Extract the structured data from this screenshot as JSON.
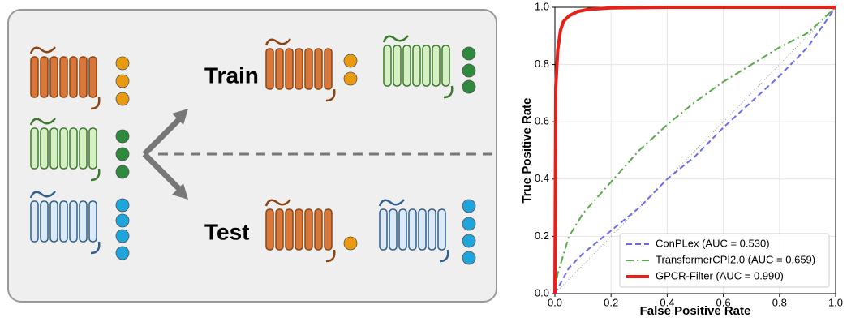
{
  "diagram": {
    "labels": [
      "Train",
      "Test"
    ]
  },
  "chart_data": {
    "type": "line",
    "xlabel": "False Positive Rate",
    "ylabel": "True Positive Rate",
    "xlim": [
      0,
      1
    ],
    "ylim": [
      0,
      1
    ],
    "xticks": [
      {
        "value": 0,
        "label": "0.0"
      },
      0.2,
      0.4,
      0.6,
      0.8,
      {
        "value": 1,
        "label": "1.0"
      }
    ],
    "yticks": [
      {
        "value": 0,
        "label": "0.0"
      },
      0.2,
      0.4,
      0.6,
      0.8,
      {
        "value": 1,
        "label": "1.0"
      }
    ],
    "grid": true,
    "legend": "lower right",
    "series": [
      {
        "name": "ConPLex (AUC = 0.530)",
        "color": "#6b6bf0",
        "style": "dashed",
        "x": [
          0,
          0.05,
          0.1,
          0.2,
          0.3,
          0.4,
          0.5,
          0.6,
          0.7,
          0.8,
          0.9,
          1
        ],
        "values": [
          0,
          0.09,
          0.14,
          0.22,
          0.3,
          0.4,
          0.48,
          0.58,
          0.67,
          0.76,
          0.86,
          1
        ]
      },
      {
        "name": "TransformerCPI2.0 (AUC = 0.659)",
        "color": "#5aaa4a",
        "style": "dashdot",
        "x": [
          0,
          0.01,
          0.05,
          0.1,
          0.2,
          0.3,
          0.4,
          0.5,
          0.6,
          0.7,
          0.8,
          0.9,
          1
        ],
        "values": [
          0,
          0.07,
          0.2,
          0.28,
          0.39,
          0.5,
          0.59,
          0.67,
          0.74,
          0.8,
          0.86,
          0.91,
          1
        ]
      },
      {
        "name": "GPCR-Filter (AUC = 0.990)",
        "color": "#e8201a",
        "style": "solid",
        "x": [
          0,
          0.003,
          0.01,
          0.02,
          0.03,
          0.05,
          0.08,
          0.12,
          0.2,
          0.4,
          1
        ],
        "values": [
          0,
          0.72,
          0.85,
          0.92,
          0.95,
          0.97,
          0.985,
          0.993,
          0.998,
          1,
          1
        ]
      }
    ]
  }
}
